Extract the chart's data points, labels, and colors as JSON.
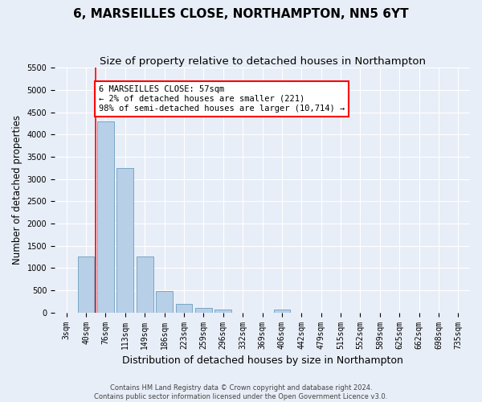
{
  "title": "6, MARSEILLES CLOSE, NORTHAMPTON, NN5 6YT",
  "subtitle": "Size of property relative to detached houses in Northampton",
  "xlabel": "Distribution of detached houses by size in Northampton",
  "ylabel": "Number of detached properties",
  "footer_line1": "Contains HM Land Registry data © Crown copyright and database right 2024.",
  "footer_line2": "Contains public sector information licensed under the Open Government Licence v3.0.",
  "bar_labels": [
    "3sqm",
    "40sqm",
    "76sqm",
    "113sqm",
    "149sqm",
    "186sqm",
    "223sqm",
    "259sqm",
    "296sqm",
    "332sqm",
    "369sqm",
    "406sqm",
    "442sqm",
    "479sqm",
    "515sqm",
    "552sqm",
    "589sqm",
    "625sqm",
    "662sqm",
    "698sqm",
    "735sqm"
  ],
  "bar_values": [
    0,
    1250,
    4300,
    3250,
    1250,
    480,
    200,
    100,
    70,
    0,
    0,
    70,
    0,
    0,
    0,
    0,
    0,
    0,
    0,
    0,
    0
  ],
  "bar_color": "#b8cfe8",
  "bar_edge_color": "#6a9ec0",
  "vline_x": 1.5,
  "annotation_text": "6 MARSEILLES CLOSE: 57sqm\n← 2% of detached houses are smaller (221)\n98% of semi-detached houses are larger (10,714) →",
  "annotation_box_facecolor": "white",
  "annotation_box_edgecolor": "red",
  "vline_color": "red",
  "ylim": [
    0,
    5500
  ],
  "yticks": [
    0,
    500,
    1000,
    1500,
    2000,
    2500,
    3000,
    3500,
    4000,
    4500,
    5000,
    5500
  ],
  "bg_color": "#e8eef7",
  "grid_color": "white",
  "title_fontsize": 11,
  "subtitle_fontsize": 9.5,
  "xlabel_fontsize": 9,
  "ylabel_fontsize": 8.5,
  "tick_fontsize": 7,
  "annotation_fontsize": 7.5,
  "footer_fontsize": 6.0
}
